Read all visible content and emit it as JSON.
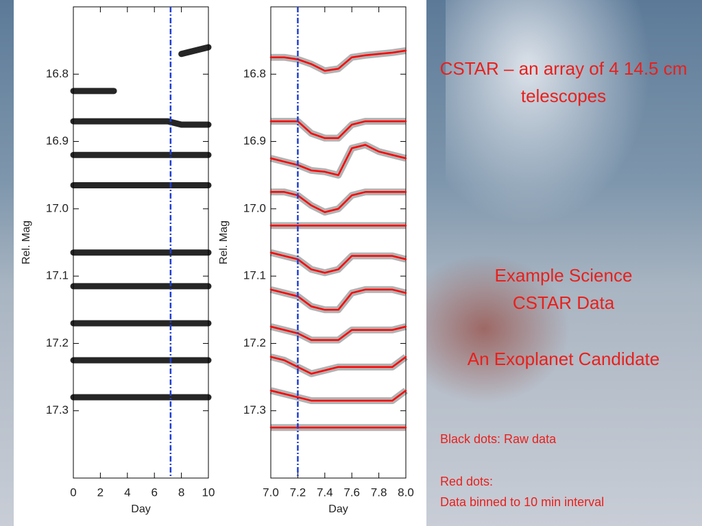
{
  "slide": {
    "heading": "CSTAR – an array of 4 14.5 cm telescopes",
    "subheading_1": "Example Science",
    "subheading_2": "CSTAR Data",
    "subheading_3": "An Exoplanet Candidate",
    "note_1": "Black dots: Raw data",
    "note_2": "Red dots:",
    "note_3": "Data binned to 10 min interval"
  },
  "chart_data": [
    {
      "type": "line",
      "xlabel": "Day",
      "ylabel": "Rel. Mag",
      "xlim": [
        0,
        10
      ],
      "xticks": [
        0,
        2,
        4,
        6,
        8,
        10
      ],
      "ylim": [
        17.4,
        16.7
      ],
      "yticks": [
        16.8,
        16.9,
        {
          "value": 17,
          "label": "17.0"
        },
        17.1,
        17.2,
        17.3
      ],
      "vline": 7.2,
      "vline_color": "#1f3fd0",
      "x": [
        0,
        1,
        2,
        3,
        4,
        5,
        6,
        7,
        8,
        9,
        10
      ],
      "series": [
        {
          "color": "#000000",
          "values": [
            null,
            null,
            null,
            null,
            null,
            null,
            null,
            null,
            16.77,
            16.765,
            16.76
          ]
        },
        {
          "color": "#000000",
          "values": [
            16.825,
            16.825,
            16.825,
            16.825,
            null,
            null,
            null,
            null,
            null,
            null,
            null
          ]
        },
        {
          "color": "#000000",
          "values": [
            16.87,
            16.87,
            16.87,
            16.87,
            16.87,
            16.87,
            16.87,
            16.87,
            16.875,
            16.875,
            16.875
          ]
        },
        {
          "color": "#000000",
          "values": [
            16.92,
            16.92,
            16.92,
            16.92,
            16.92,
            16.92,
            16.92,
            16.92,
            16.92,
            16.92,
            16.92
          ]
        },
        {
          "color": "#000000",
          "values": [
            16.965,
            16.965,
            16.965,
            16.965,
            16.965,
            16.965,
            16.965,
            16.965,
            16.965,
            16.965,
            16.965
          ]
        },
        {
          "color": "#000000",
          "values": [
            17.065,
            17.065,
            17.065,
            17.065,
            17.065,
            17.065,
            17.065,
            17.065,
            17.065,
            17.065,
            17.065
          ]
        },
        {
          "color": "#000000",
          "values": [
            17.115,
            17.115,
            17.115,
            17.115,
            17.115,
            17.115,
            17.115,
            17.115,
            17.115,
            17.115,
            17.115
          ]
        },
        {
          "color": "#000000",
          "values": [
            17.17,
            17.17,
            17.17,
            17.17,
            17.17,
            17.17,
            17.17,
            17.17,
            17.17,
            17.17,
            17.17
          ]
        },
        {
          "color": "#000000",
          "values": [
            17.225,
            17.225,
            17.225,
            17.225,
            17.225,
            17.225,
            17.225,
            17.225,
            17.225,
            17.225,
            17.225
          ]
        },
        {
          "color": "#000000",
          "values": [
            17.28,
            17.28,
            17.28,
            17.28,
            17.28,
            17.28,
            17.28,
            17.28,
            17.28,
            17.28,
            17.28
          ]
        }
      ]
    },
    {
      "type": "line",
      "xlabel": "Day",
      "ylabel": "Rel. Mag",
      "xlim": [
        7,
        8
      ],
      "xticks": [
        {
          "value": 7,
          "label": "7.0"
        },
        7.2,
        7.4,
        7.6,
        7.8,
        {
          "value": 8,
          "label": "8.0"
        }
      ],
      "ylim": [
        17.4,
        16.7
      ],
      "yticks": [
        16.8,
        16.9,
        {
          "value": 17,
          "label": "17.0"
        },
        17.1,
        17.2,
        17.3
      ],
      "vline": 7.2,
      "vline_color": "#1f3fd0",
      "raw_color": "#000000",
      "x": [
        7,
        7.1,
        7.2,
        7.3,
        7.4,
        7.5,
        7.6,
        7.7,
        7.8,
        7.9,
        8
      ],
      "series": [
        {
          "color": "#ff0000",
          "values": [
            16.775,
            16.775,
            16.778,
            16.785,
            16.795,
            16.792,
            16.775,
            16.772,
            16.77,
            16.768,
            16.765
          ]
        },
        {
          "color": "#ff0000",
          "values": [
            16.87,
            16.87,
            16.87,
            16.888,
            16.895,
            16.895,
            16.875,
            16.87,
            16.87,
            16.87,
            16.87
          ]
        },
        {
          "color": "#ff0000",
          "values": [
            16.925,
            16.93,
            16.935,
            16.943,
            16.945,
            16.95,
            16.91,
            16.905,
            16.915,
            16.92,
            16.925
          ]
        },
        {
          "color": "#ff0000",
          "values": [
            16.975,
            16.975,
            16.98,
            16.995,
            17.005,
            17,
            16.98,
            16.975,
            16.975,
            16.975,
            16.975
          ]
        },
        {
          "color": "#ff0000",
          "x": [
            7,
            8
          ],
          "values": [
            17.025,
            17.025
          ]
        },
        {
          "color": "#ff0000",
          "values": [
            17.065,
            17.07,
            17.075,
            17.09,
            17.095,
            17.09,
            17.07,
            17.07,
            17.07,
            17.07,
            17.075
          ]
        },
        {
          "color": "#ff0000",
          "values": [
            17.12,
            17.125,
            17.13,
            17.145,
            17.15,
            17.15,
            17.125,
            17.12,
            17.12,
            17.12,
            17.125
          ]
        },
        {
          "color": "#ff0000",
          "values": [
            17.175,
            17.18,
            17.185,
            17.195,
            17.195,
            17.195,
            17.18,
            17.18,
            17.18,
            17.18,
            17.175
          ]
        },
        {
          "color": "#ff0000",
          "values": [
            17.22,
            17.225,
            17.235,
            17.245,
            17.24,
            17.235,
            17.235,
            17.235,
            17.235,
            17.235,
            17.22
          ]
        },
        {
          "color": "#ff0000",
          "values": [
            17.27,
            17.275,
            17.28,
            17.285,
            17.285,
            17.285,
            17.285,
            17.285,
            17.285,
            17.285,
            17.27
          ]
        },
        {
          "color": "#ff0000",
          "values": [
            17.325,
            17.325,
            17.325,
            17.325,
            17.325,
            17.325,
            17.325,
            17.325,
            17.325,
            17.325,
            17.325
          ]
        }
      ]
    }
  ]
}
